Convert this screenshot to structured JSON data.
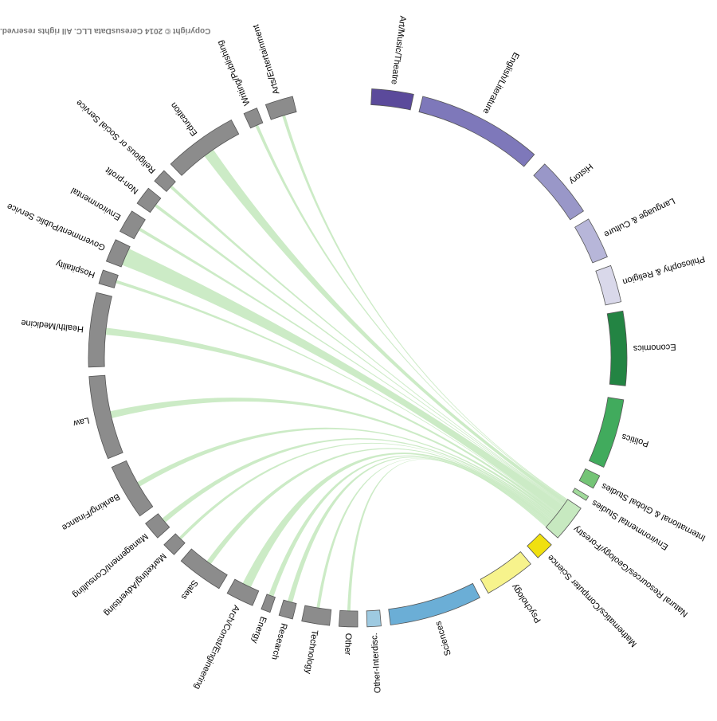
{
  "chart_data": {
    "type": "chord",
    "title": "",
    "majors": [
      {
        "label": "Art/Music/Theatre",
        "color": "#5b4a9b"
      },
      {
        "label": "English/Literature",
        "color": "#7e78ba"
      },
      {
        "label": "History",
        "color": "#9997c8"
      },
      {
        "label": "Language & Culture",
        "color": "#b7b6d9"
      },
      {
        "label": "Philosophy & Religion",
        "color": "#d9d8ea"
      },
      {
        "label": "Economics",
        "color": "#238443"
      },
      {
        "label": "Politics",
        "color": "#41ab5d"
      },
      {
        "label": "International & Global Studies",
        "color": "#74c476"
      },
      {
        "label": "Environmental Studies",
        "color": "#a1d99b"
      },
      {
        "label": "Natural Resources/Geology/Forestry",
        "color": "#c7e9c0"
      },
      {
        "label": "Mathematics/Computer Science",
        "color": "#f0e010"
      },
      {
        "label": "Psychology",
        "color": "#f7f38c"
      },
      {
        "label": "Sciences",
        "color": "#6baed6"
      },
      {
        "label": "Other-Interdisc.",
        "color": "#9ecae1"
      }
    ],
    "careers": [
      "Other",
      "Technology",
      "Research",
      "Energy",
      "Arch/Const/Engineering",
      "Sales",
      "Marketing/Advertising",
      "Management/Consulting",
      "Banking/Finance",
      "Law",
      "Health/Medicine",
      "Hospitality",
      "Government/Public Service",
      "Environmental",
      "Non-profit",
      "Religious or Social Service",
      "Education",
      "Writing/Publishing",
      "Arts/Entertainment"
    ],
    "career_color": "#8c8c8c",
    "ribbon_color": "#c7e9c0",
    "highlighted_major": "Natural Resources/Geology/Forestry",
    "flows_from_highlighted": [
      {
        "career": "Other",
        "value": 1
      },
      {
        "career": "Technology",
        "value": 1
      },
      {
        "career": "Research",
        "value": 2
      },
      {
        "career": "Energy",
        "value": 2
      },
      {
        "career": "Arch/Const/Engineering",
        "value": 4
      },
      {
        "career": "Sales",
        "value": 2
      },
      {
        "career": "Marketing/Advertising",
        "value": 1
      },
      {
        "career": "Management/Consulting",
        "value": 2
      },
      {
        "career": "Banking/Finance",
        "value": 2
      },
      {
        "career": "Law",
        "value": 3
      },
      {
        "career": "Health/Medicine",
        "value": 3
      },
      {
        "career": "Hospitality",
        "value": 1
      },
      {
        "career": "Government/Public Service",
        "value": 12
      },
      {
        "career": "Environmental",
        "value": 1
      },
      {
        "career": "Non-profit",
        "value": 1
      },
      {
        "career": "Religious or Social Service",
        "value": 1
      },
      {
        "career": "Education",
        "value": 5
      },
      {
        "career": "Writing/Publishing",
        "value": 1
      },
      {
        "career": "Arts/Entertainment",
        "value": 1
      }
    ]
  },
  "copyright": "Copyright © 2014 CeresusData LLC.  All rights reserved."
}
